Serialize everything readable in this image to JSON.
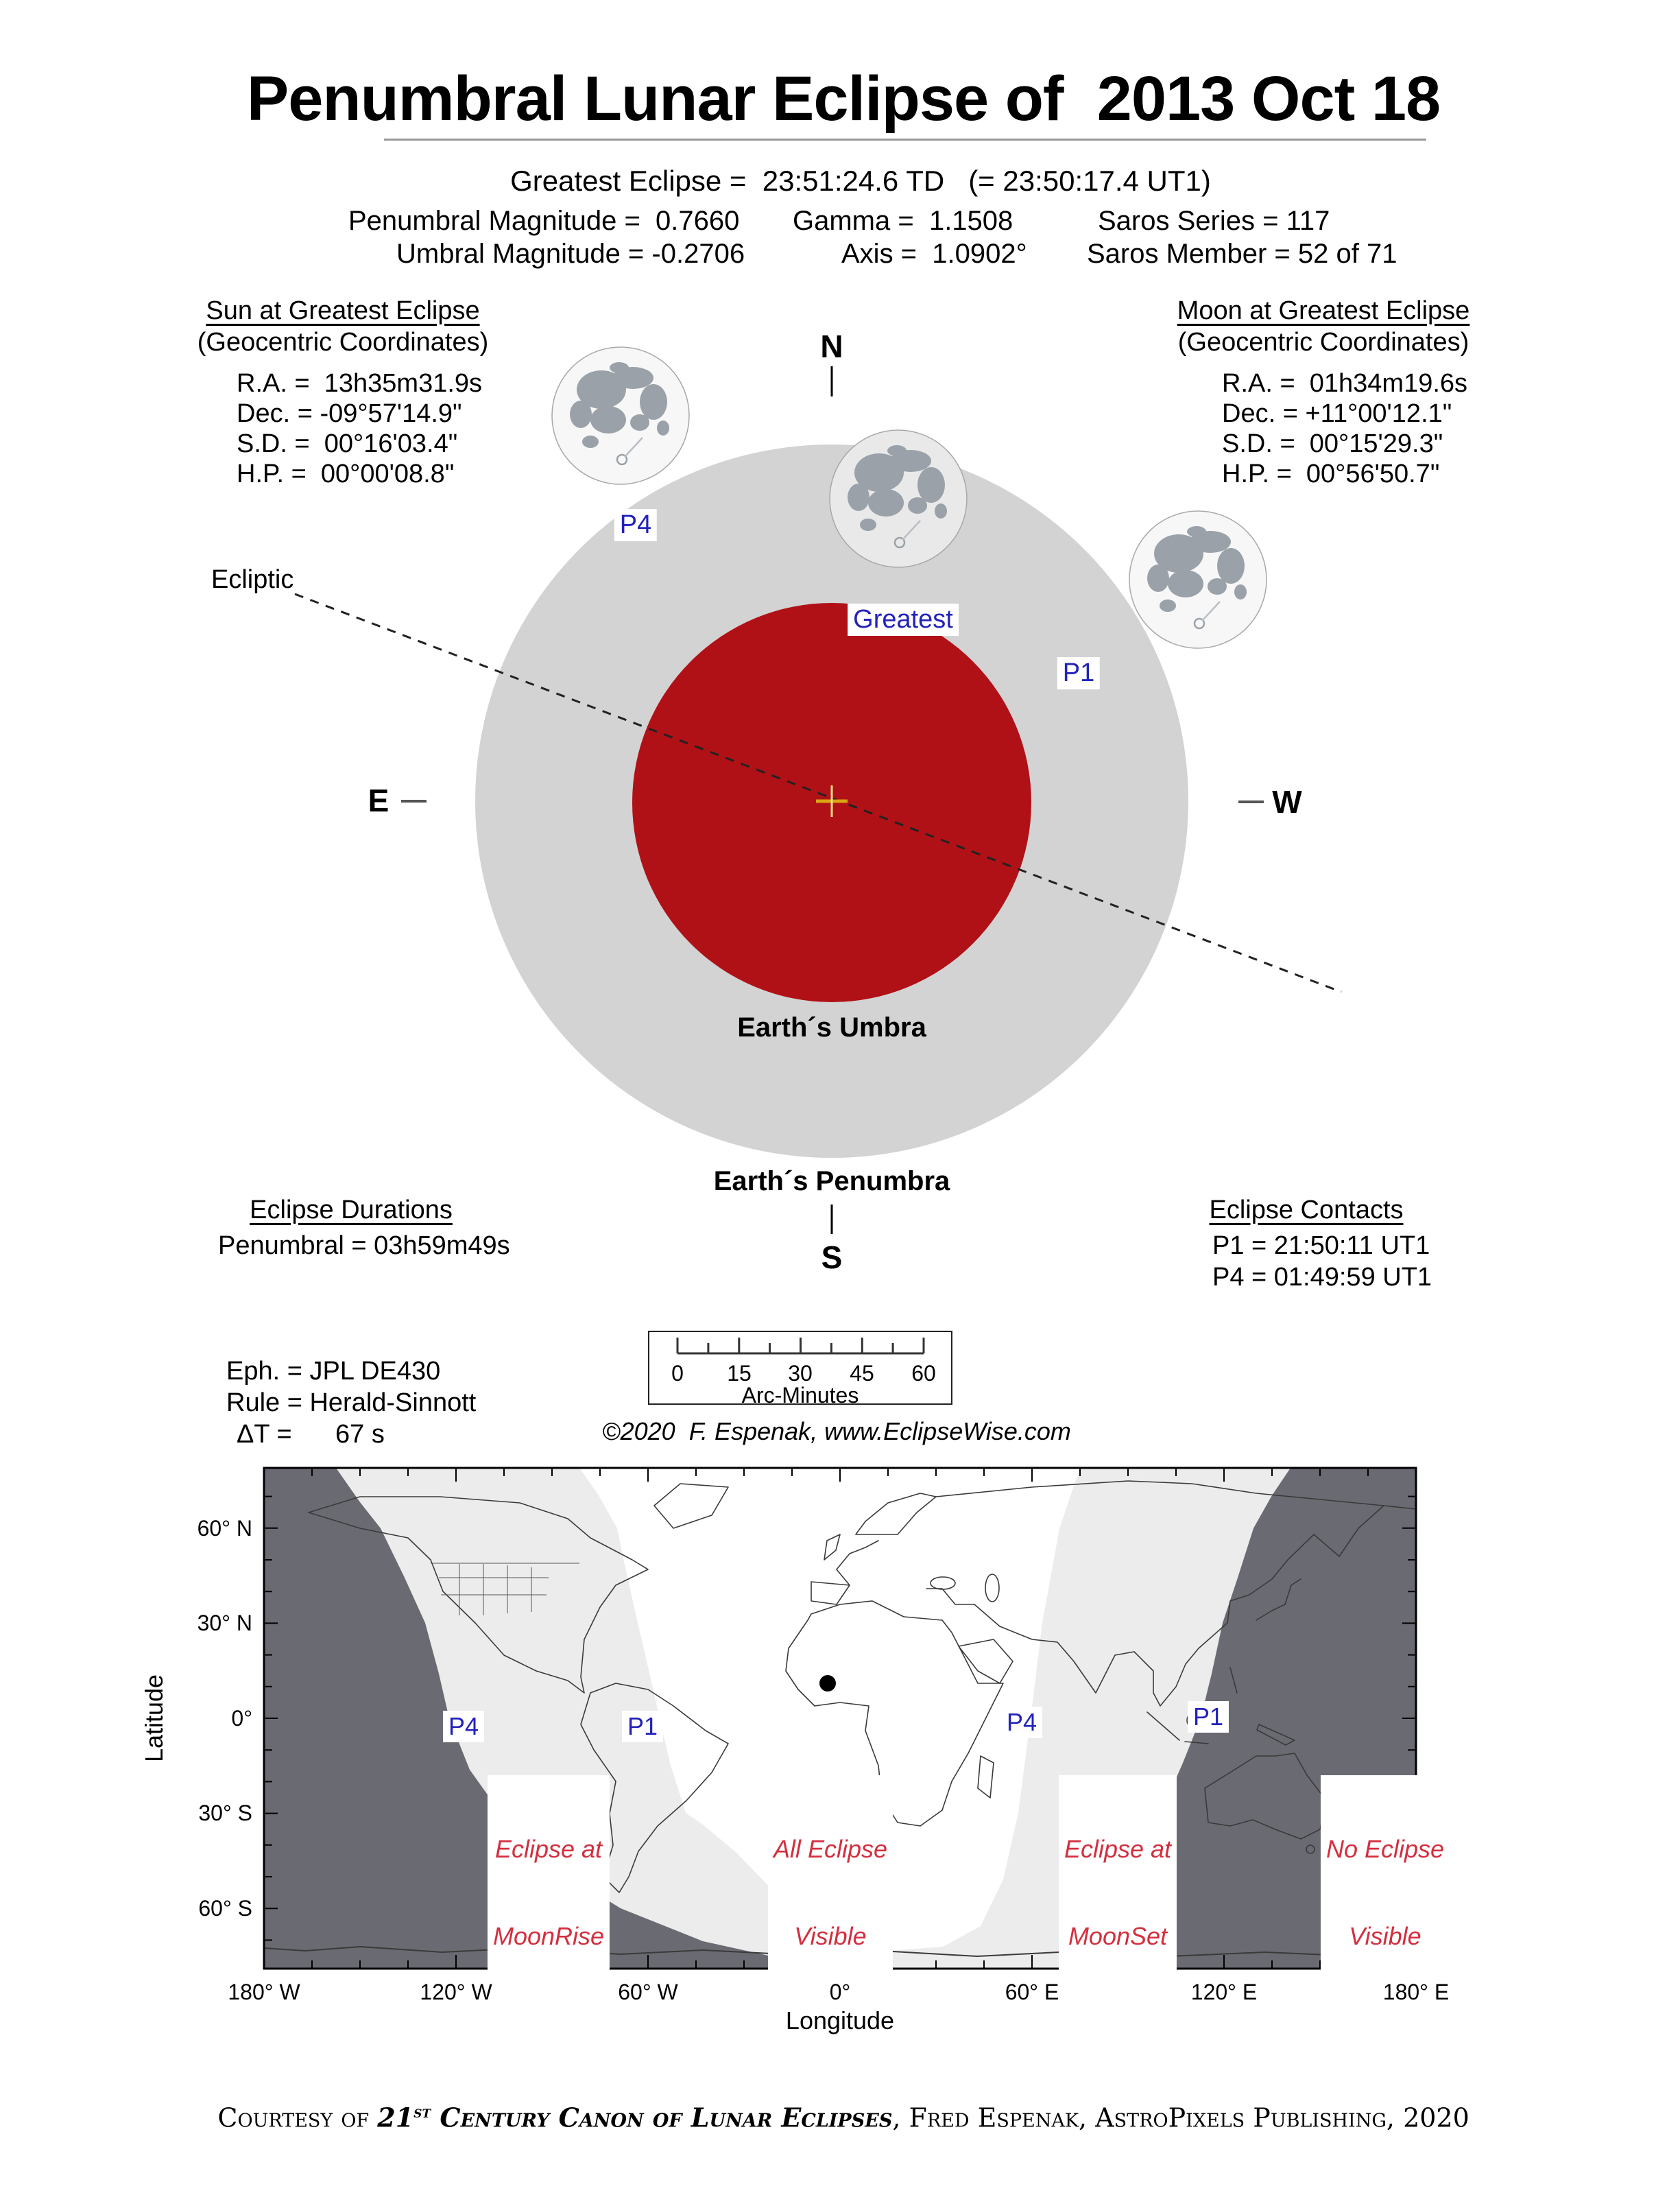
{
  "title": "Penumbral Lunar Eclipse of  2013 Oct 18",
  "subtitle": "Greatest Eclipse =  23:51:24.6 TD   (= 23:50:17.4 UT1)",
  "stats": {
    "penumbral_magnitude": "Penumbral Magnitude =  0.7660",
    "umbral_magnitude": "Umbral Magnitude = -0.2706",
    "gamma": "Gamma =  1.1508",
    "axis": "Axis =  1.0902°",
    "saros_series": "Saros Series = 117",
    "saros_member": "Saros Member = 52 of 71"
  },
  "sun": {
    "heading": "Sun at Greatest Eclipse",
    "subheading": "(Geocentric Coordinates)",
    "ra": "R.A. =  13h35m31.9s",
    "dec": "Dec. = -09°57'14.9\"",
    "sd": "S.D. =  00°16'03.4\"",
    "hp": "H.P. =  00°00'08.8\""
  },
  "moon": {
    "heading": "Moon at Greatest Eclipse",
    "subheading": "(Geocentric Coordinates)",
    "ra": "R.A. =  01h34m19.6s",
    "dec": "Dec. = +11°00'12.1\"",
    "sd": "S.D. =  00°15'29.3\"",
    "hp": "H.P. =  00°56'50.7\""
  },
  "diagram": {
    "ecliptic_label": "Ecliptic",
    "north": "N",
    "south": "S",
    "east": "E",
    "west": "W",
    "p4": "P4",
    "p1": "P1",
    "greatest": "Greatest",
    "umbra_label": "Earth´s Umbra",
    "penumbra_label": "Earth´s Penumbra",
    "umbra_color": "#b01116",
    "penumbra_color": "#d3d3d3"
  },
  "durations": {
    "heading": "Eclipse Durations",
    "penumbral": "Penumbral = 03h59m49s"
  },
  "contacts": {
    "heading": "Eclipse Contacts",
    "p1": "P1 = 21:50:11 UT1",
    "p4": "P4 = 01:49:59 UT1"
  },
  "ephemeris": {
    "eph": "Eph. = JPL DE430",
    "rule": "Rule = Herald-Sinnott",
    "delta_t": "ΔT =      67 s"
  },
  "scale_bar": {
    "ticks": [
      "0",
      "15",
      "30",
      "45",
      "60"
    ],
    "unit": "Arc-Minutes"
  },
  "copyright": "©2020  F. Espenak, www.EclipseWise.com",
  "map": {
    "ylabel": "Latitude",
    "xlabel": "Longitude",
    "lat_ticks": [
      "60° N",
      "30° N",
      "0°",
      "30° S",
      "60° S"
    ],
    "lon_ticks": [
      "180° W",
      "120° W",
      "60° W",
      "0°",
      "60° E",
      "120° E",
      "180° E"
    ],
    "markers": {
      "p4_west": "P4",
      "p1_west": "P1",
      "p4_east": "P4",
      "p1_east": "P1"
    },
    "zones": {
      "moonrise_1": "Eclipse at",
      "moonrise_2": "MoonRise",
      "all_1": "All Eclipse",
      "all_2": "Visible",
      "moonset_1": "Eclipse at",
      "moonset_2": "MoonSet",
      "none_1": "No Eclipse",
      "none_2": "Visible"
    },
    "dark_color": "#6a6a72",
    "light_color": "#ececec",
    "zone_label_color": "#d32f3f"
  },
  "footer": {
    "prefix": "Courtesy of ",
    "num": "21",
    "sup": "st",
    "title_rest": " Century Canon of Lunar Eclipses",
    "suffix": ", Fred Espenak, AstroPixels Publishing, 2020"
  }
}
